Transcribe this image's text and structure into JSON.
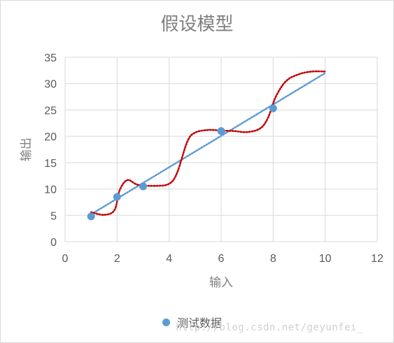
{
  "chart_data": {
    "type": "scatter",
    "title": "假设模型",
    "xlabel": "输入",
    "ylabel": "输出",
    "xlim": [
      0,
      12
    ],
    "ylim": [
      0,
      35
    ],
    "xticks": [
      0,
      2,
      4,
      6,
      8,
      10,
      12
    ],
    "yticks": [
      0,
      5,
      10,
      15,
      20,
      25,
      30,
      35
    ],
    "grid": true,
    "legend_position": "bottom",
    "series": [
      {
        "name": "测试数据",
        "color": "#5b9bd5",
        "points": [
          [
            1,
            4.8
          ],
          [
            2,
            8.5
          ],
          [
            3,
            10.5
          ],
          [
            6,
            21
          ],
          [
            8,
            25.3
          ]
        ]
      }
    ],
    "fit_lines": [
      {
        "style": "dotted",
        "color": "#5b9bd5",
        "points": [
          [
            1,
            5.2
          ],
          [
            10,
            32
          ]
        ]
      },
      {
        "style": "dotted",
        "color": "#c00000",
        "points": [
          [
            1,
            5.6
          ],
          [
            1.5,
            5.1
          ],
          [
            1.9,
            6.0
          ],
          [
            2.1,
            9.8
          ],
          [
            2.4,
            11.7
          ],
          [
            2.8,
            10.8
          ],
          [
            3.5,
            10.6
          ],
          [
            4.0,
            11.0
          ],
          [
            4.3,
            13.0
          ],
          [
            4.7,
            19.0
          ],
          [
            5.0,
            20.7
          ],
          [
            5.5,
            21.2
          ],
          [
            6.0,
            21.1
          ],
          [
            6.5,
            21.0
          ],
          [
            7.0,
            20.8
          ],
          [
            7.5,
            21.5
          ],
          [
            7.8,
            23.5
          ],
          [
            8.1,
            27.5
          ],
          [
            8.5,
            30.5
          ],
          [
            9.0,
            31.8
          ],
          [
            9.5,
            32.3
          ],
          [
            10.0,
            32.3
          ]
        ]
      }
    ]
  },
  "legend": {
    "label": "测试数据"
  },
  "watermark": "http://blog.csdn.net/geyunfei_"
}
